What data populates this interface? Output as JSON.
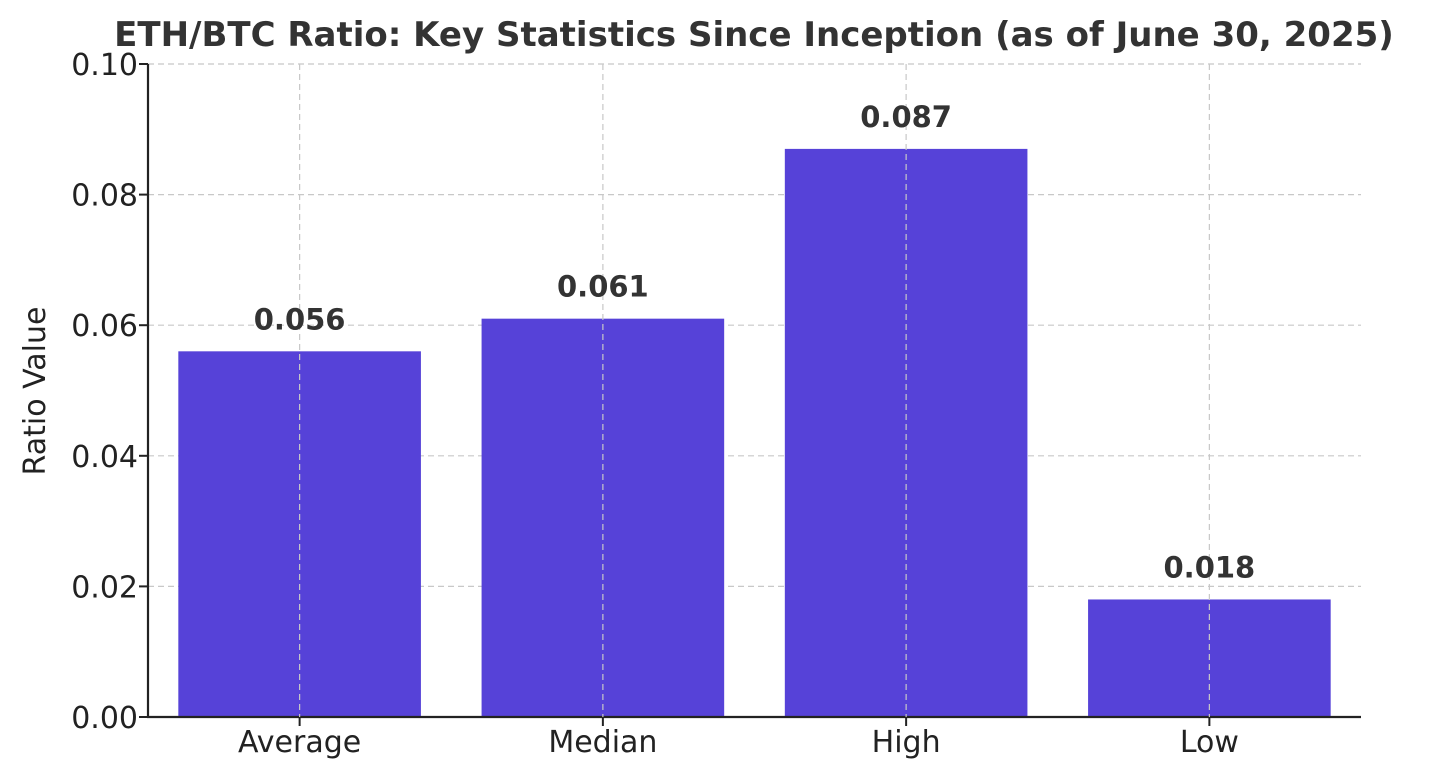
{
  "chart_data": {
    "type": "bar",
    "title": "ETH/BTC Ratio: Key Statistics Since Inception (as of June 30, 2025)",
    "xlabel": "",
    "ylabel": "Ratio Value",
    "categories": [
      "Average",
      "Median",
      "High",
      "Low"
    ],
    "values": [
      0.056,
      0.061,
      0.087,
      0.018
    ],
    "value_labels": [
      "0.056",
      "0.061",
      "0.087",
      "0.018"
    ],
    "ylim": [
      0,
      0.1
    ],
    "yticks": [
      0.0,
      0.02,
      0.04,
      0.06,
      0.08,
      0.1
    ],
    "ytick_labels": [
      "0.00",
      "0.02",
      "0.04",
      "0.06",
      "0.08",
      "0.10"
    ],
    "grid": true,
    "bar_color": "#5642d8"
  }
}
